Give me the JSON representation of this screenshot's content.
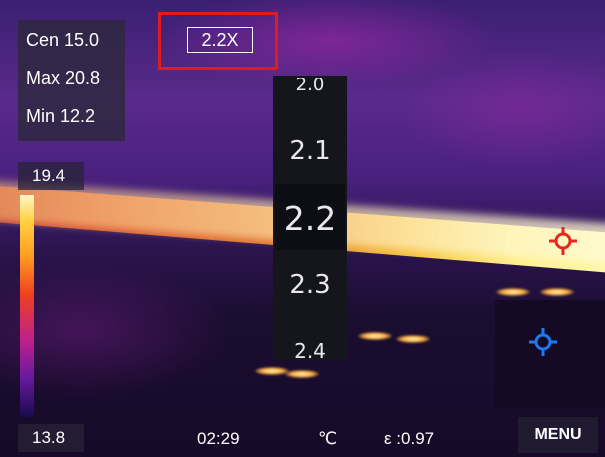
{
  "readings": {
    "center": "Cen 15.0",
    "max": "Max 20.8",
    "min": "Min 12.2"
  },
  "zoom": {
    "current": "2.2X",
    "options": [
      "2.0",
      "2.1",
      "2.2",
      "2.3",
      "2.4"
    ],
    "selected": "2.2"
  },
  "scale": {
    "high": "19.4",
    "low": "13.8"
  },
  "status": {
    "time": "02:29",
    "unit": "℃",
    "emissivity": "ε :0.97"
  },
  "menu_label": "MENU",
  "colors": {
    "highlight_border": "#e01b1b",
    "max_marker": "#e8281e",
    "min_marker": "#1e78f0"
  },
  "icons": {
    "max_marker": "crosshair-max-icon",
    "min_marker": "crosshair-min-icon"
  }
}
